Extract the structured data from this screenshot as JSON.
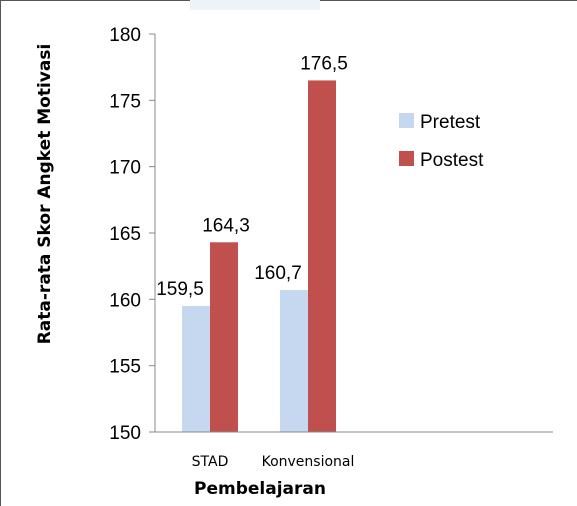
{
  "chart_data": {
    "type": "bar",
    "categories": [
      "STAD",
      "Konvensional"
    ],
    "series": [
      {
        "name": "Pretest",
        "values": [
          159.5,
          160.7
        ],
        "color": "#c5d8ef"
      },
      {
        "name": "Postest",
        "values": [
          164.3,
          176.5
        ],
        "color": "#c0504d"
      }
    ],
    "data_labels": [
      [
        "159,5",
        "160,7"
      ],
      [
        "164,3",
        "176,5"
      ]
    ],
    "title": "",
    "xlabel": "Pembelajaran",
    "ylabel": "Rata-rata Skor Angket Motivasi",
    "ylim": [
      150,
      180
    ],
    "yticks": [
      150,
      155,
      160,
      165,
      170,
      175,
      180
    ],
    "grid": false,
    "legend_position": "right"
  }
}
